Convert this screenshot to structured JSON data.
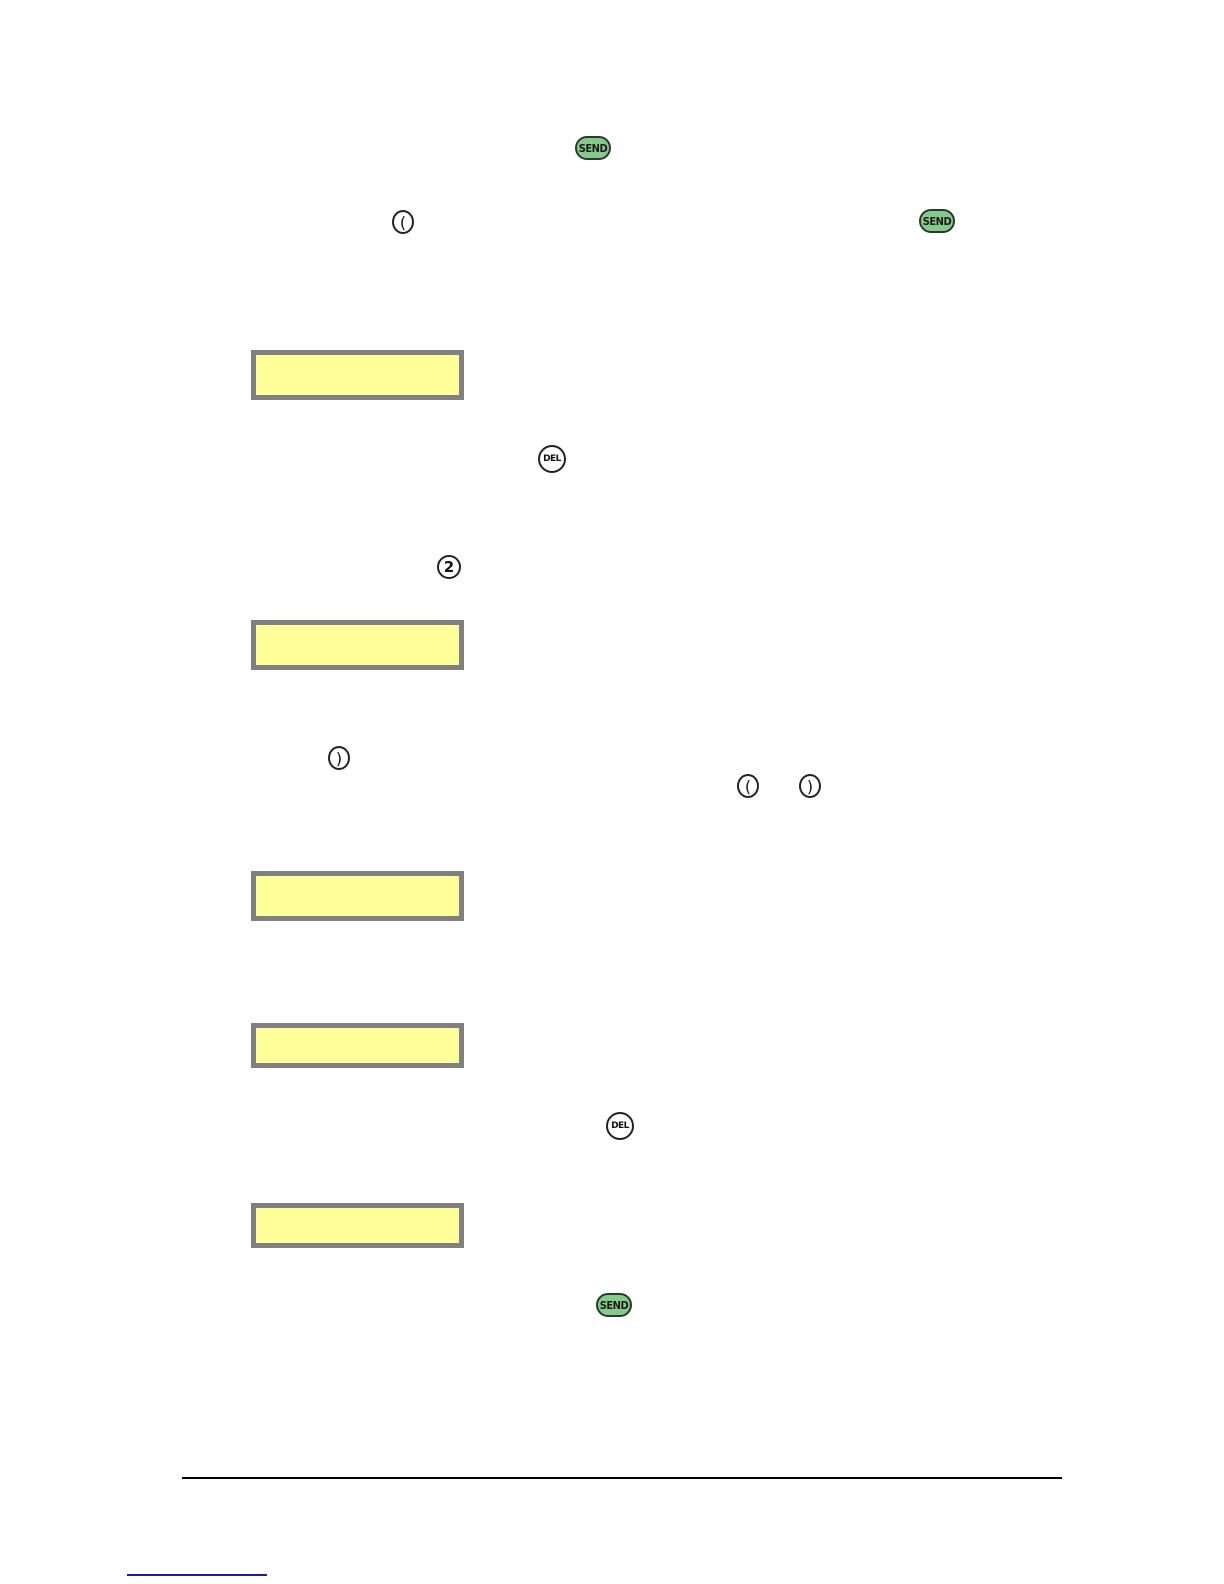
{
  "keys": {
    "send": "SEND",
    "del": "DEL",
    "two": "2",
    "left_soft": "(",
    "right_soft": ")"
  },
  "colors": {
    "send_key": "#86c98a",
    "display_fill": "#ffff99",
    "display_border": "#808080",
    "link": "#1a1aa8"
  }
}
